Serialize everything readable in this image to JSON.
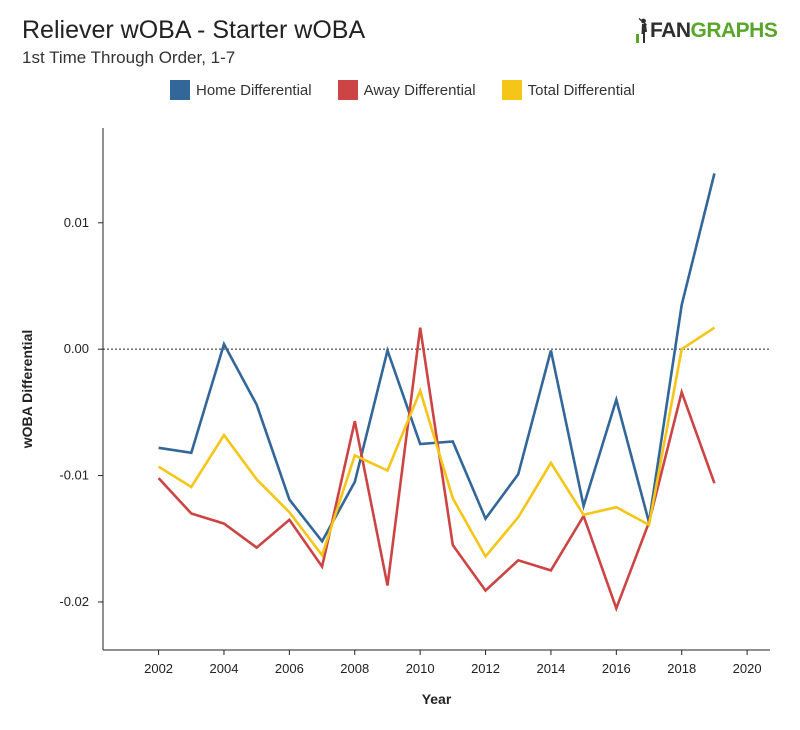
{
  "header": {
    "title": "Reliever wOBA - Starter wOBA",
    "subtitle": "1st Time Through Order, 1-7",
    "logo_fan": "FAN",
    "logo_graphs": "GRAPHS"
  },
  "colors": {
    "home": "#336699",
    "away": "#cc4444",
    "total": "#f5c518",
    "logo_green": "#5aa62c"
  },
  "chart_data": {
    "type": "line",
    "xlabel": "Year",
    "ylabel": "wOBA Differential",
    "xlim": [
      2000.3,
      2020.7
    ],
    "ylim": [
      -0.0238,
      0.0175
    ],
    "x_ticks": [
      2002,
      2004,
      2006,
      2008,
      2010,
      2012,
      2014,
      2016,
      2018,
      2020
    ],
    "x_tick_labels": [
      "2002",
      "2004",
      "2006",
      "2008",
      "2010",
      "2012",
      "2014",
      "2016",
      "2018",
      "2020"
    ],
    "y_ticks": [
      -0.02,
      -0.01,
      0.0,
      0.01
    ],
    "y_tick_labels": [
      "-0.02",
      "-0.01",
      "0.00",
      "0.01"
    ],
    "zero_reference_line": true,
    "grid": false,
    "legend_position": "top",
    "x": [
      2002,
      2003,
      2004,
      2005,
      2006,
      2007,
      2008,
      2009,
      2010,
      2011,
      2012,
      2013,
      2014,
      2015,
      2016,
      2017,
      2018,
      2019
    ],
    "series": [
      {
        "name": "Home Differential",
        "color_key": "home",
        "values": [
          -0.0078,
          -0.0082,
          0.0004,
          -0.0044,
          -0.0119,
          -0.0152,
          -0.0105,
          -0.0001,
          -0.0075,
          -0.0073,
          -0.0134,
          -0.0099,
          -0.0001,
          -0.0124,
          -0.004,
          -0.0137,
          0.0035,
          0.0139
        ]
      },
      {
        "name": "Away Differential",
        "color_key": "away",
        "values": [
          -0.0102,
          -0.013,
          -0.0138,
          -0.0157,
          -0.0135,
          -0.0172,
          -0.0057,
          -0.0187,
          0.0017,
          -0.0155,
          -0.0191,
          -0.0167,
          -0.0175,
          -0.0132,
          -0.0205,
          -0.0137,
          -0.0034,
          -0.0106
        ]
      },
      {
        "name": "Total Differential",
        "color_key": "total",
        "values": [
          -0.0093,
          -0.0109,
          -0.0068,
          -0.0103,
          -0.0129,
          -0.0163,
          -0.0084,
          -0.0096,
          -0.0033,
          -0.0118,
          -0.0164,
          -0.0133,
          -0.009,
          -0.0131,
          -0.0125,
          -0.0139,
          0.0,
          0.0017
        ]
      }
    ]
  }
}
